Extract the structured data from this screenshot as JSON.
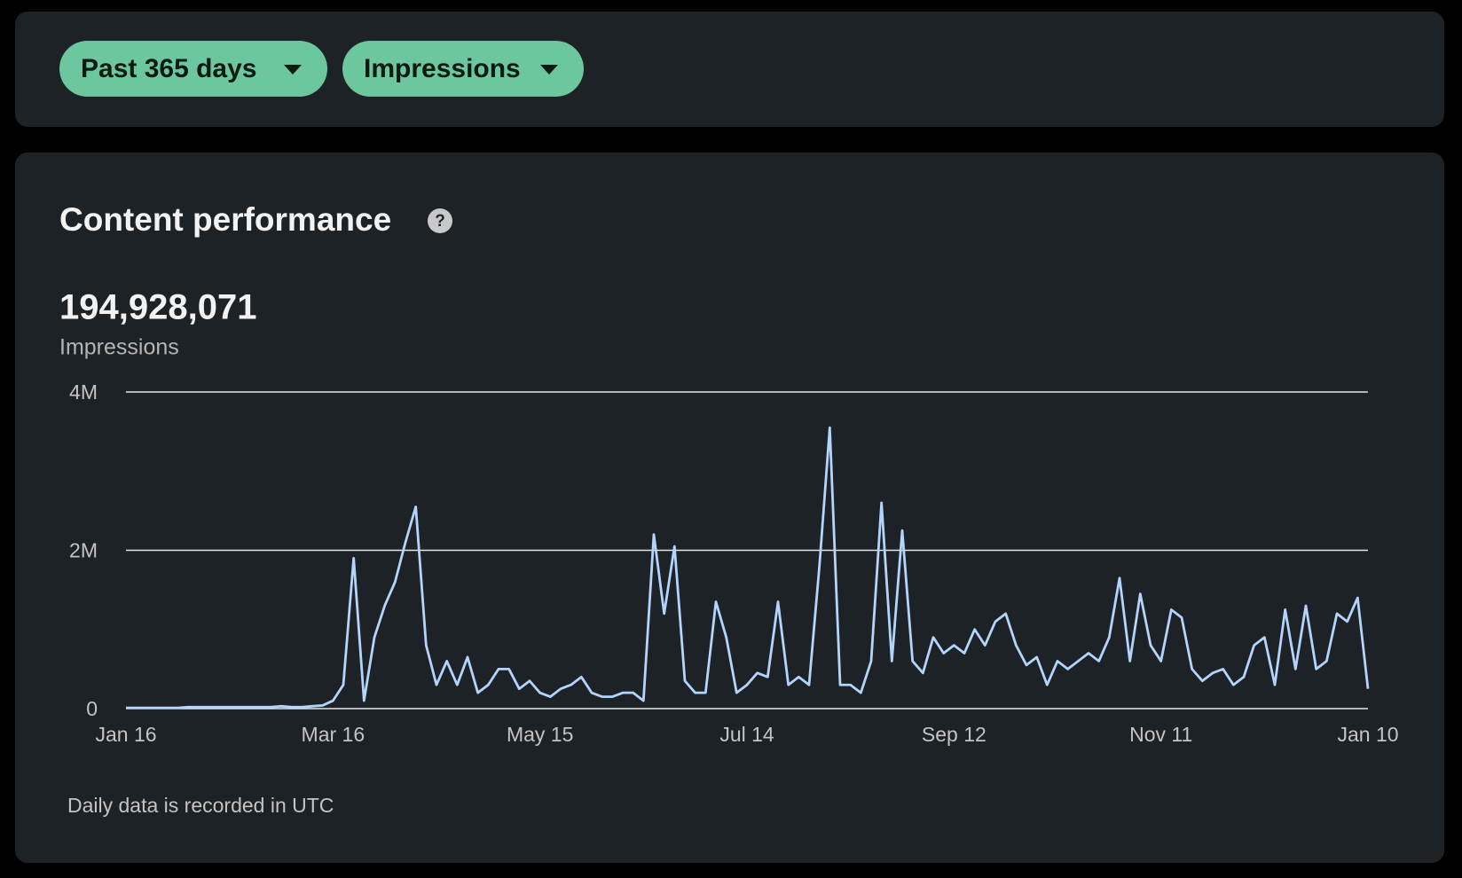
{
  "filters": [
    "Past 365 days",
    "Impressions"
  ],
  "headline": {
    "total": "194,928,071",
    "metric": "Impressions"
  },
  "footnote": "Daily data is recorded in UTC",
  "chart_data": {
    "type": "line",
    "title": "Content performance",
    "categories": [
      "Jan 16",
      null,
      null,
      null,
      null,
      null,
      null,
      null,
      null,
      null,
      null,
      null,
      null,
      null,
      null,
      null,
      null,
      null,
      null,
      null,
      "Mar 16",
      null,
      null,
      null,
      null,
      null,
      null,
      null,
      null,
      null,
      null,
      null,
      null,
      null,
      null,
      null,
      null,
      null,
      null,
      null,
      "May 15",
      null,
      null,
      null,
      null,
      null,
      null,
      null,
      null,
      null,
      null,
      null,
      null,
      null,
      null,
      null,
      null,
      null,
      null,
      null,
      "Jul 14",
      null,
      null,
      null,
      null,
      null,
      null,
      null,
      null,
      null,
      null,
      null,
      null,
      null,
      null,
      null,
      null,
      null,
      null,
      null,
      "Sep 12",
      null,
      null,
      null,
      null,
      null,
      null,
      null,
      null,
      null,
      null,
      null,
      null,
      null,
      null,
      null,
      null,
      null,
      null,
      null,
      "Nov 11",
      null,
      null,
      null,
      null,
      null,
      null,
      null,
      null,
      null,
      null,
      null,
      null,
      null,
      null,
      null,
      null,
      null,
      null,
      null,
      "Jan 10"
    ],
    "values": [
      0.01,
      0.01,
      0.01,
      0.01,
      0.01,
      0.01,
      0.02,
      0.02,
      0.02,
      0.02,
      0.02,
      0.02,
      0.02,
      0.02,
      0.02,
      0.03,
      0.02,
      0.02,
      0.03,
      0.04,
      0.1,
      0.3,
      1.9,
      0.1,
      0.9,
      1.3,
      1.6,
      2.1,
      2.55,
      0.8,
      0.3,
      0.6,
      0.3,
      0.65,
      0.2,
      0.3,
      0.5,
      0.5,
      0.25,
      0.35,
      0.2,
      0.15,
      0.25,
      0.3,
      0.4,
      0.2,
      0.15,
      0.15,
      0.2,
      0.2,
      0.1,
      2.2,
      1.2,
      2.05,
      0.35,
      0.2,
      0.2,
      1.35,
      0.9,
      0.2,
      0.3,
      0.45,
      0.4,
      1.35,
      0.3,
      0.4,
      0.3,
      1.8,
      3.55,
      0.3,
      0.3,
      0.2,
      0.6,
      2.6,
      0.6,
      2.25,
      0.6,
      0.45,
      0.9,
      0.7,
      0.8,
      0.7,
      1.0,
      0.8,
      1.1,
      1.2,
      0.8,
      0.55,
      0.65,
      0.3,
      0.6,
      0.5,
      0.6,
      0.7,
      0.6,
      0.9,
      1.65,
      0.6,
      1.45,
      0.8,
      0.6,
      1.25,
      1.15,
      0.5,
      0.35,
      0.45,
      0.5,
      0.3,
      0.4,
      0.8,
      0.9,
      0.3,
      1.25,
      0.5,
      1.3,
      0.5,
      0.6,
      1.2,
      1.1,
      1.4,
      0.25
    ],
    "color": "#b3d4fc",
    "ylim": [
      0,
      4
    ],
    "yticks": [
      0,
      {
        "value": 2,
        "label": "2M"
      },
      {
        "value": 4,
        "label": "4M"
      }
    ],
    "grid": true
  }
}
